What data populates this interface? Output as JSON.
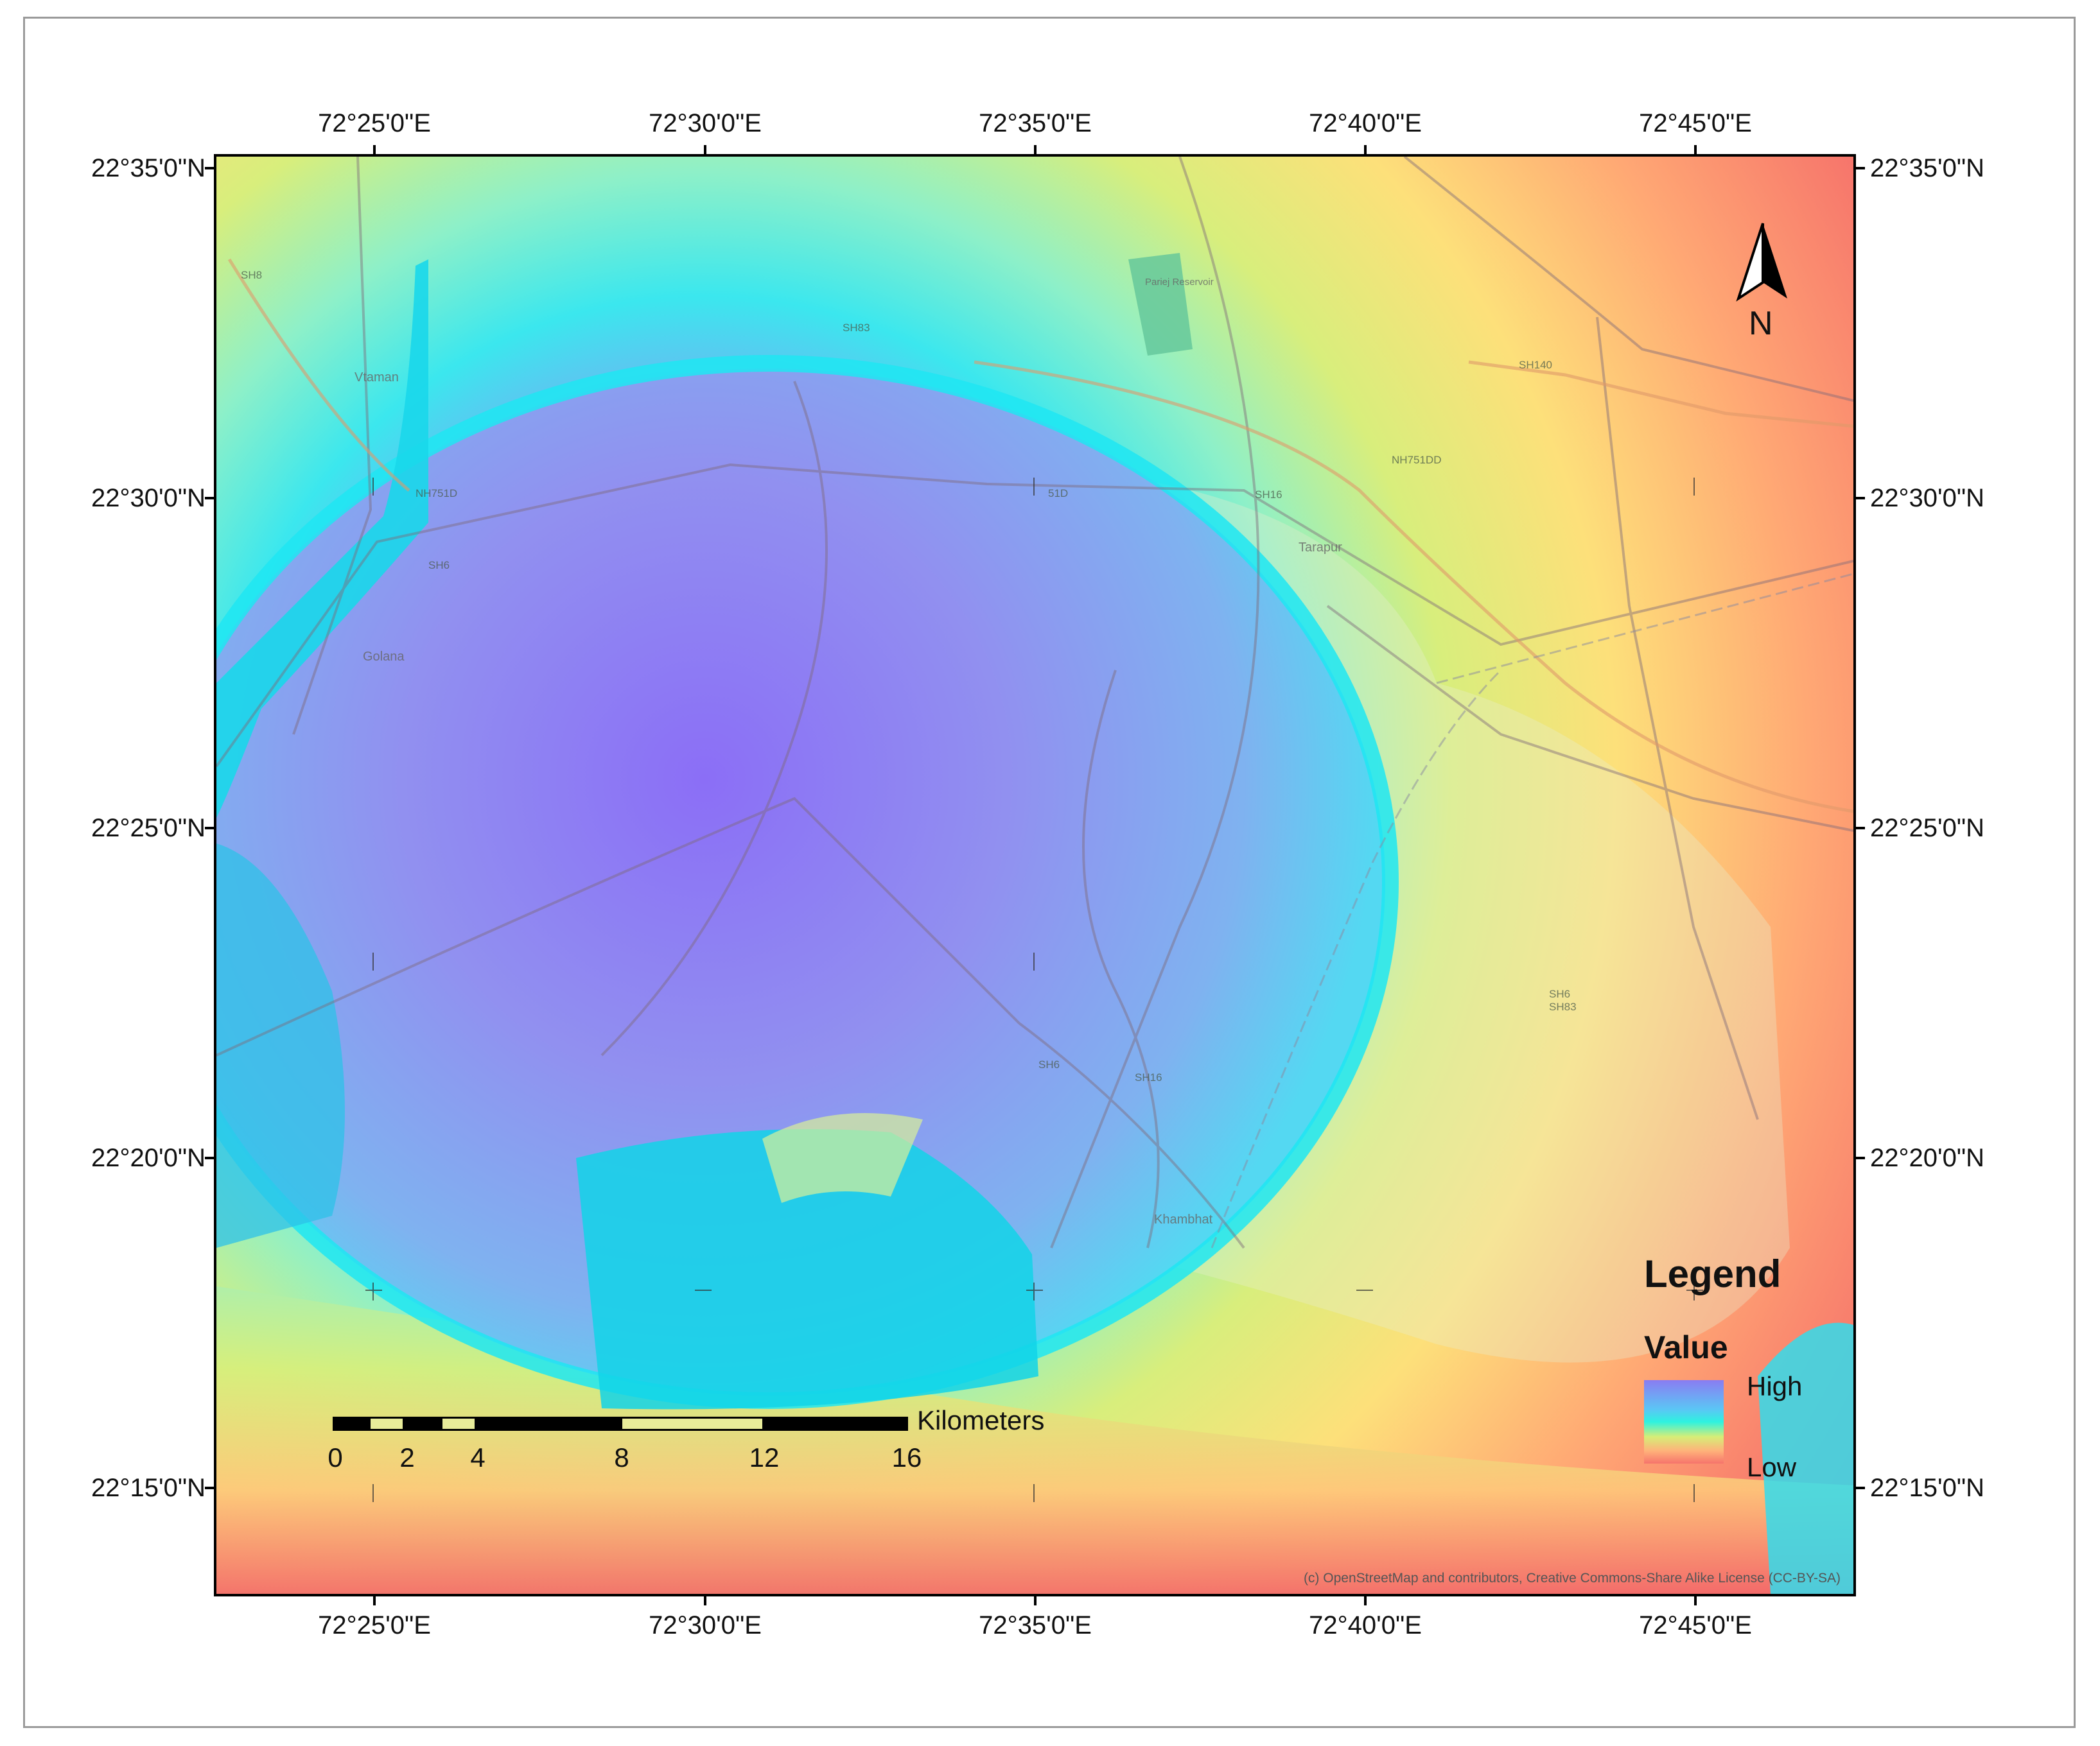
{
  "lon_labels": [
    "72°25'0\"E",
    "72°30'0\"E",
    "72°35'0\"E",
    "72°40'0\"E",
    "72°45'0\"E"
  ],
  "lat_labels": [
    "22°35'0\"N",
    "22°30'0\"N",
    "22°25'0\"N",
    "22°20'0\"N",
    "22°15'0\"N"
  ],
  "north_arrow": {
    "label": "N"
  },
  "legend": {
    "title": "Legend",
    "subtitle": "Value",
    "high": "High",
    "low": "Low"
  },
  "scale_bar": {
    "unit": "Kilometers",
    "labels": [
      "0",
      "2",
      "4",
      "8",
      "12",
      "16"
    ]
  },
  "places": {
    "vtaman": "Vtaman",
    "golana": "Golana",
    "tarapur": "Tarapur",
    "khambhat": "Khambhat",
    "pariej": "Pariej Reservoir"
  },
  "road_labels": {
    "sh8": "SH8",
    "sh83": "SH83",
    "sh140": "SH140",
    "nh751d_left": "NH751D",
    "nh751dd": "NH751DD",
    "sh16_top": "SH16",
    "sh16_mid": "SH16",
    "sh6_left": "SH6",
    "sh6_mid": "SH6",
    "sh16_lower": "SH16",
    "sh6_sh83_a": "SH6",
    "sh6_sh83_b": "SH83",
    "s15d": "51D"
  },
  "attribution": "(c) OpenStreetMap and contributors, Creative Commons-Share Alike License (CC-BY-SA)",
  "colors": {
    "high": "#8a7cf2",
    "mid": "#2ef2e0",
    "low": "#f6746c",
    "frame": "#000000"
  }
}
